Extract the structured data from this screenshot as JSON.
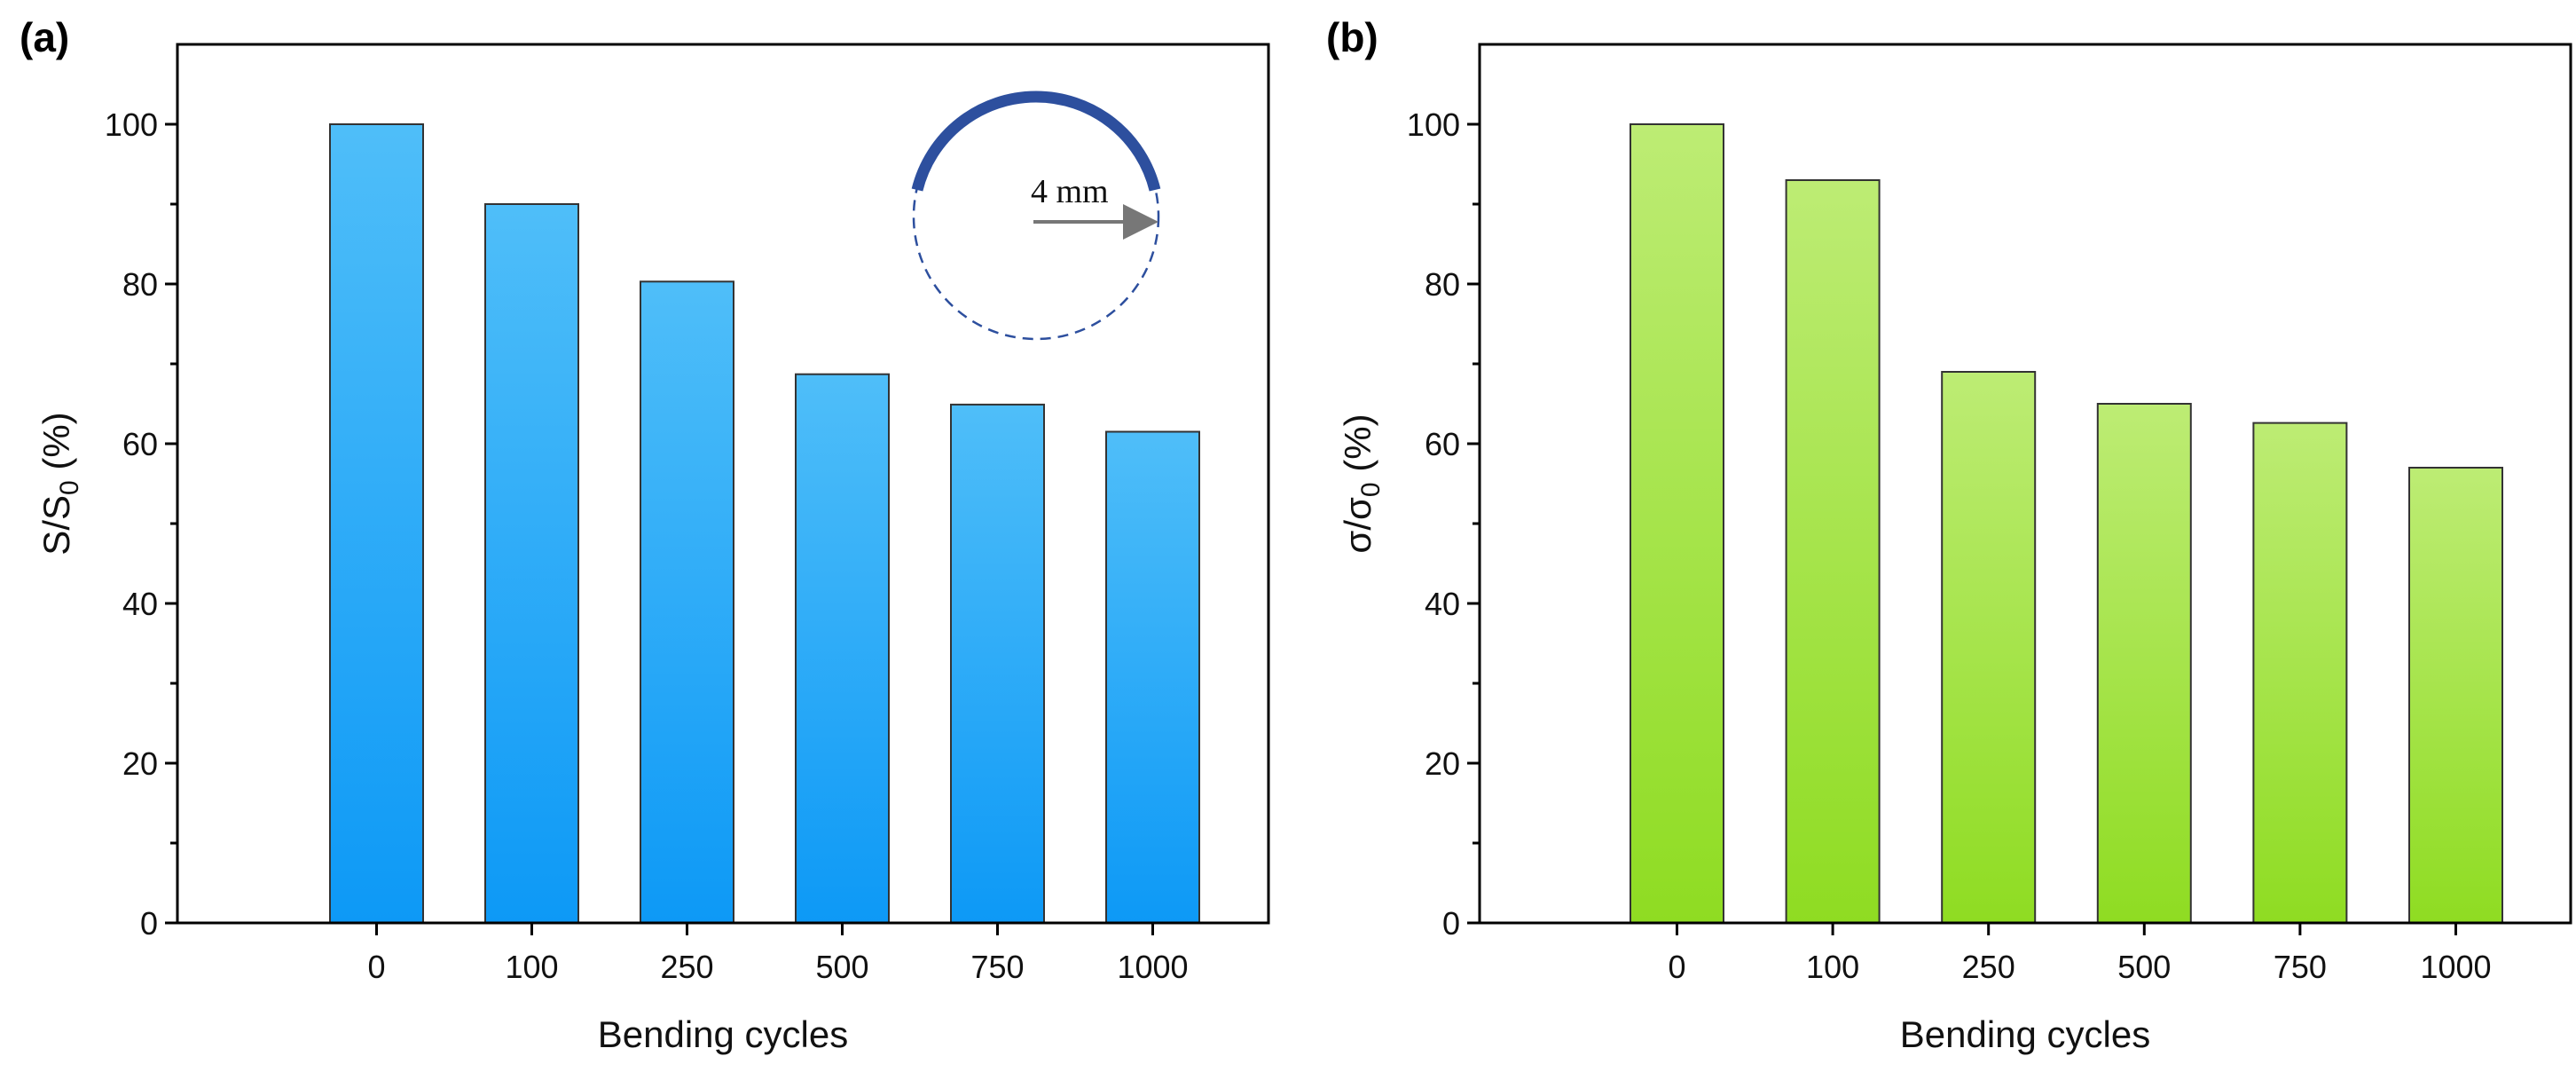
{
  "chart_data": [
    {
      "type": "bar",
      "panel_label": "(a)",
      "categories": [
        "0",
        "100",
        "250",
        "500",
        "750",
        "1000"
      ],
      "values": [
        100,
        90,
        80.3,
        68.7,
        64.9,
        61.5
      ],
      "xlabel": "Bending cycles",
      "ylabel_main": "S/S",
      "ylabel_sub": "0",
      "ylabel_unit": " (%)",
      "ylim": [
        0,
        110
      ],
      "yticks": [
        0,
        20,
        40,
        60,
        80,
        100
      ],
      "bar_color_top": "#4fbef9",
      "bar_color_bottom": "#0d99f6",
      "inset": {
        "label": "4 mm",
        "arc_color": "#2d4f9e",
        "circle_color": "#2d4f9e",
        "arrow_color": "#777777"
      }
    },
    {
      "type": "bar",
      "panel_label": "(b)",
      "categories": [
        "0",
        "100",
        "250",
        "500",
        "750",
        "1000"
      ],
      "values": [
        100,
        93,
        69,
        65,
        62.6,
        57
      ],
      "xlabel": "Bending cycles",
      "ylabel_main": "σ/σ",
      "ylabel_sub": "0",
      "ylabel_unit": " (%)",
      "ylim": [
        0,
        110
      ],
      "yticks": [
        0,
        20,
        40,
        60,
        80,
        100
      ],
      "bar_color_top": "#bdec74",
      "bar_color_bottom": "#8fdc22"
    }
  ]
}
